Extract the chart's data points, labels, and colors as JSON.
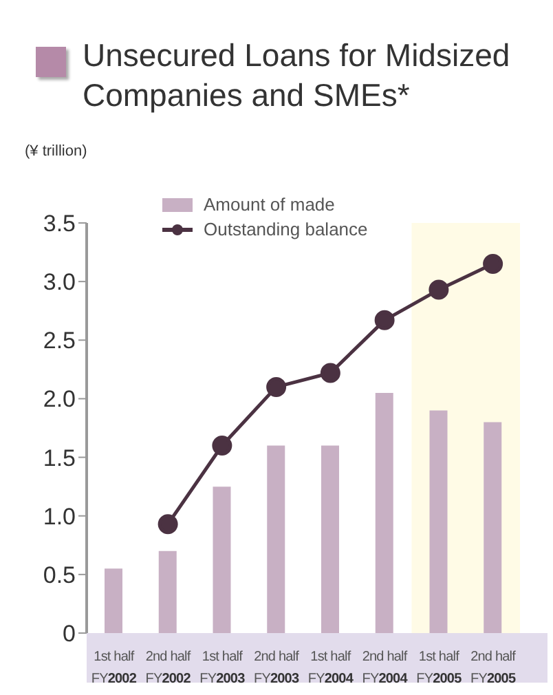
{
  "chart_data": {
    "type": "bar",
    "title": "Unsecured Loans for Midsized Companies and SMEs*",
    "ylabel": "(¥ trillion)",
    "categories": [
      "1st half FY2002",
      "2nd half FY2002",
      "1st half FY2003",
      "2nd half FY2003",
      "1st half FY2004",
      "2nd half FY2004",
      "1st half FY2005",
      "2nd half FY2005"
    ],
    "series": [
      {
        "name": "Amount of made",
        "color": "#c8b0c4",
        "values": [
          0.55,
          0.7,
          1.25,
          1.6,
          1.6,
          2.05,
          1.9,
          1.8
        ]
      },
      {
        "name": "Outstanding balance",
        "type": "line",
        "color": "#4b3242",
        "marker": "circle",
        "values": [
          null,
          0.93,
          1.6,
          2.1,
          2.22,
          2.67,
          2.93,
          3.15
        ]
      }
    ],
    "ylim": [
      0,
      3.5
    ],
    "yticks": [
      {
        "value": 0,
        "label": "0"
      },
      {
        "value": 0.5,
        "label": "0.5"
      },
      {
        "value": 1,
        "label": "1.0"
      },
      {
        "value": 1.5,
        "label": "1.5"
      },
      {
        "value": 2,
        "label": "2.0"
      },
      {
        "value": 2.5,
        "label": "2.5"
      },
      {
        "value": 3,
        "label": "3.0"
      },
      {
        "value": 3.5,
        "label": "3.5"
      }
    ],
    "bands": [
      {
        "axis": "x",
        "from": "1st half FY2005",
        "to": "2nd half FY2005",
        "color": "#fffbe6"
      }
    ],
    "grid": false,
    "legend": "top left"
  }
}
